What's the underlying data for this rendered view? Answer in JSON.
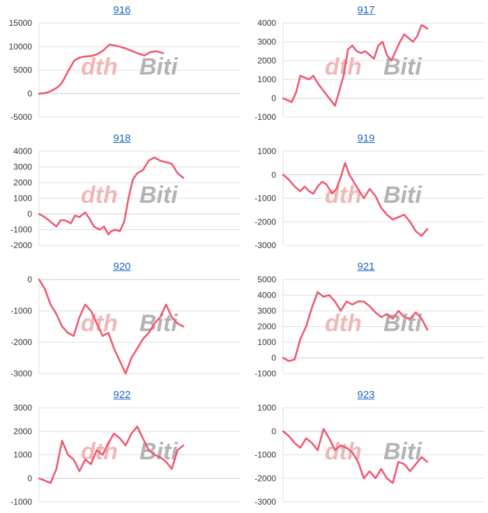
{
  "line_color": "#f0576f",
  "watermark": {
    "left": "dth",
    "right": "Biti",
    "left_color": "#f0b7b7",
    "right_color": "#b3b3b3"
  },
  "chart_data": [
    {
      "type": "line",
      "title": "916",
      "ylim": [
        -5000,
        15000
      ],
      "yticks": [
        15000,
        10000,
        5000,
        0,
        -5000
      ],
      "grid": true,
      "series": [
        {
          "x": [
            0,
            5,
            10,
            15,
            18,
            20,
            25,
            30,
            35,
            40,
            45,
            50,
            55,
            60,
            65,
            70,
            75,
            80,
            85,
            90,
            95,
            100,
            106
          ],
          "values": [
            0,
            100,
            500,
            1200,
            1800,
            2500,
            4800,
            7000,
            7700,
            7900,
            8000,
            8400,
            9200,
            10400,
            10200,
            9900,
            9500,
            9000,
            8500,
            8100,
            8800,
            9000,
            8600
          ]
        }
      ]
    },
    {
      "type": "line",
      "title": "917",
      "ylim": [
        -1000,
        4000
      ],
      "yticks": [
        4000,
        3000,
        2000,
        1000,
        0,
        -1000
      ],
      "grid": true,
      "series": [
        {
          "x": [
            0,
            3,
            6,
            9,
            12,
            15,
            18,
            21,
            24,
            27,
            30,
            33,
            36,
            39,
            42,
            45,
            48,
            51,
            54,
            57,
            60,
            63,
            66,
            69,
            72,
            75,
            78,
            81,
            84,
            87,
            90,
            93,
            96,
            100
          ],
          "values": [
            0,
            -100,
            -200,
            300,
            1200,
            1100,
            1000,
            1200,
            800,
            500,
            200,
            -100,
            -400,
            400,
            1200,
            2600,
            2800,
            2500,
            2400,
            2500,
            2300,
            2100,
            2800,
            3000,
            2300,
            2000,
            2500,
            3000,
            3400,
            3200,
            3000,
            3300,
            3900,
            3700
          ]
        }
      ]
    },
    {
      "type": "line",
      "title": "918",
      "ylim": [
        -2000,
        4000
      ],
      "yticks": [
        4000,
        3000,
        2000,
        1000,
        0,
        -1000,
        -2000
      ],
      "grid": true,
      "series": [
        {
          "x": [
            0,
            4,
            8,
            12,
            15,
            18,
            22,
            25,
            28,
            32,
            35,
            38,
            42,
            45,
            48,
            50,
            53,
            56,
            59,
            62,
            65,
            68,
            72,
            76,
            80,
            84,
            88,
            92,
            96,
            100
          ],
          "values": [
            0,
            -200,
            -500,
            -800,
            -400,
            -400,
            -600,
            -100,
            -200,
            100,
            -300,
            -800,
            -1000,
            -800,
            -1300,
            -1100,
            -1000,
            -1100,
            -500,
            1000,
            2200,
            2600,
            2800,
            3400,
            3600,
            3400,
            3300,
            3200,
            2600,
            2300
          ]
        }
      ]
    },
    {
      "type": "line",
      "title": "919",
      "ylim": [
        -3000,
        1000
      ],
      "yticks": [
        1000,
        0,
        -1000,
        -2000,
        -3000
      ],
      "grid": true,
      "series": [
        {
          "x": [
            0,
            4,
            8,
            12,
            15,
            18,
            21,
            24,
            27,
            30,
            34,
            37,
            40,
            43,
            46,
            50,
            53,
            56,
            60,
            64,
            68,
            72,
            76,
            80,
            84,
            88,
            92,
            96,
            100
          ],
          "values": [
            0,
            -200,
            -500,
            -700,
            -500,
            -700,
            -800,
            -500,
            -300,
            -400,
            -800,
            -600,
            -100,
            500,
            0,
            -400,
            -700,
            -1000,
            -600,
            -900,
            -1400,
            -1700,
            -1900,
            -1800,
            -1700,
            -2000,
            -2400,
            -2600,
            -2300
          ]
        }
      ]
    },
    {
      "type": "line",
      "title": "920",
      "ylim": [
        -3000,
        0
      ],
      "yticks": [
        0,
        -1000,
        -2000,
        -3000
      ],
      "grid": true,
      "series": [
        {
          "x": [
            0,
            4,
            8,
            12,
            16,
            20,
            24,
            28,
            32,
            36,
            40,
            44,
            48,
            52,
            56,
            60,
            64,
            68,
            72,
            76,
            80,
            84,
            88,
            92,
            96,
            100
          ],
          "values": [
            0,
            -300,
            -800,
            -1100,
            -1500,
            -1700,
            -1800,
            -1200,
            -800,
            -1000,
            -1400,
            -1800,
            -1700,
            -2200,
            -2600,
            -3000,
            -2500,
            -2200,
            -1900,
            -1700,
            -1400,
            -1200,
            -800,
            -1200,
            -1400,
            -1500
          ]
        }
      ]
    },
    {
      "type": "line",
      "title": "921",
      "ylim": [
        -1000,
        5000
      ],
      "yticks": [
        5000,
        4000,
        3000,
        2000,
        1000,
        0,
        -1000
      ],
      "grid": true,
      "series": [
        {
          "x": [
            0,
            4,
            8,
            12,
            16,
            20,
            24,
            28,
            32,
            36,
            40,
            44,
            48,
            52,
            56,
            60,
            64,
            68,
            72,
            76,
            80,
            84,
            88,
            92,
            96,
            100
          ],
          "values": [
            0,
            -200,
            -100,
            1200,
            2000,
            3200,
            4200,
            3900,
            4000,
            3600,
            3000,
            3600,
            3400,
            3600,
            3600,
            3300,
            2900,
            2600,
            2800,
            2500,
            3000,
            2600,
            2500,
            2900,
            2500,
            1800
          ]
        }
      ]
    },
    {
      "type": "line",
      "title": "922",
      "ylim": [
        -1000,
        3000
      ],
      "yticks": [
        3000,
        2000,
        1000,
        0,
        -1000
      ],
      "grid": true,
      "series": [
        {
          "x": [
            0,
            4,
            8,
            12,
            16,
            20,
            24,
            28,
            32,
            36,
            40,
            44,
            48,
            52,
            56,
            60,
            64,
            68,
            72,
            76,
            80,
            84,
            88,
            92,
            96,
            100
          ],
          "values": [
            0,
            -100,
            -200,
            400,
            1600,
            1000,
            800,
            300,
            800,
            600,
            1200,
            1000,
            1500,
            1900,
            1700,
            1400,
            1900,
            2200,
            1700,
            1200,
            1000,
            900,
            700,
            400,
            1200,
            1400
          ]
        }
      ]
    },
    {
      "type": "line",
      "title": "923",
      "ylim": [
        -3000,
        1000
      ],
      "yticks": [
        1000,
        0,
        -1000,
        -2000,
        -3000
      ],
      "grid": true,
      "series": [
        {
          "x": [
            0,
            4,
            8,
            12,
            16,
            20,
            24,
            28,
            32,
            36,
            40,
            44,
            48,
            52,
            56,
            60,
            64,
            68,
            72,
            76,
            80,
            84,
            88,
            92,
            96,
            100
          ],
          "values": [
            0,
            -200,
            -500,
            -700,
            -300,
            -500,
            -800,
            100,
            -300,
            -800,
            -600,
            -700,
            -900,
            -1300,
            -2000,
            -1700,
            -2000,
            -1600,
            -2000,
            -2200,
            -1300,
            -1400,
            -1700,
            -1400,
            -1100,
            -1300
          ]
        }
      ]
    }
  ]
}
